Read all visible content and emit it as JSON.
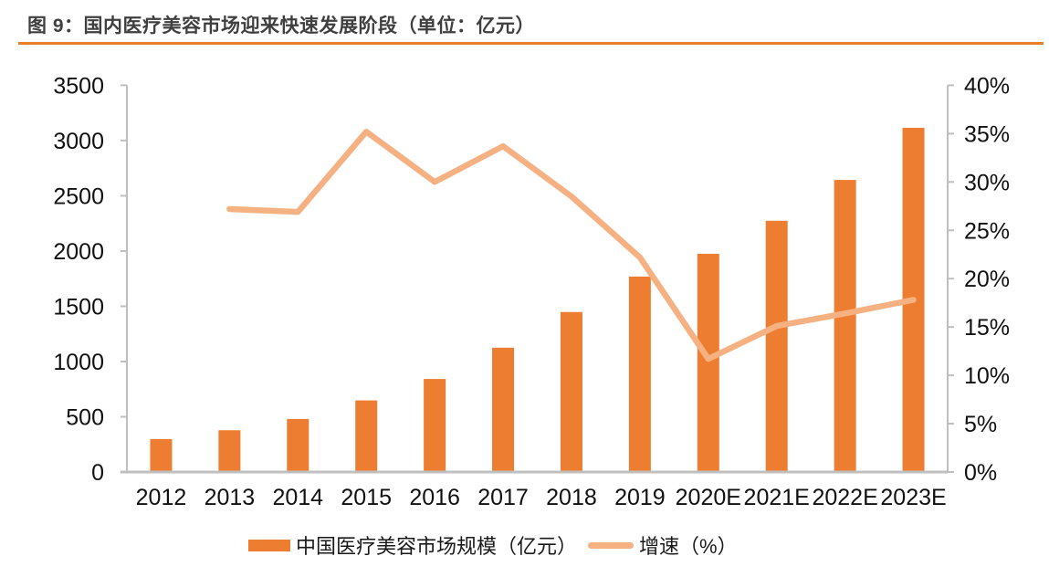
{
  "figure": {
    "title": "图 9：国内医疗美容市场迎来快速发展阶段（单位：亿元）"
  },
  "colors": {
    "bar": "#ED7D31",
    "line": "#F6B183",
    "axis": "#BFBFBF",
    "tick_text": "#111111",
    "title_text": "#3F3F3F",
    "rule": "#E87E2B"
  },
  "legend": {
    "bar_label": "中国医疗美容市场规模（亿元）",
    "line_label": "增速（%）"
  },
  "chart_data": {
    "type": "bar",
    "subtype": "bar+line combo, dual y-axes",
    "title": "图 9：国内医疗美容市场迎来快速发展阶段（单位：亿元）",
    "categories": [
      "2012",
      "2013",
      "2014",
      "2015",
      "2016",
      "2017",
      "2018",
      "2019",
      "2020E",
      "2021E",
      "2022E",
      "2023E"
    ],
    "series": [
      {
        "name": "中国医疗美容市场规模（亿元）",
        "type": "bar",
        "axis": "left",
        "values": [
          298,
          378,
          480,
          648,
          842,
          1125,
          1448,
          1769,
          1975,
          2274,
          2643,
          3115
        ]
      },
      {
        "name": "增速（%）",
        "type": "line",
        "axis": "right",
        "values": [
          null,
          27.2,
          26.9,
          35.2,
          30.0,
          33.7,
          28.5,
          22.2,
          11.7,
          15.1,
          16.4,
          17.8
        ]
      }
    ],
    "left_axis": {
      "min": 0,
      "max": 3500,
      "step": 500,
      "ticks": [
        "0",
        "500",
        "1000",
        "1500",
        "2000",
        "2500",
        "3000",
        "3500"
      ]
    },
    "right_axis": {
      "min": 0,
      "max": 40,
      "step": 5,
      "ticks": [
        "0%",
        "5%",
        "10%",
        "15%",
        "20%",
        "25%",
        "30%",
        "35%",
        "40%"
      ]
    },
    "grid": false,
    "legend_position": "bottom",
    "xlabel": "",
    "ylabel": ""
  }
}
